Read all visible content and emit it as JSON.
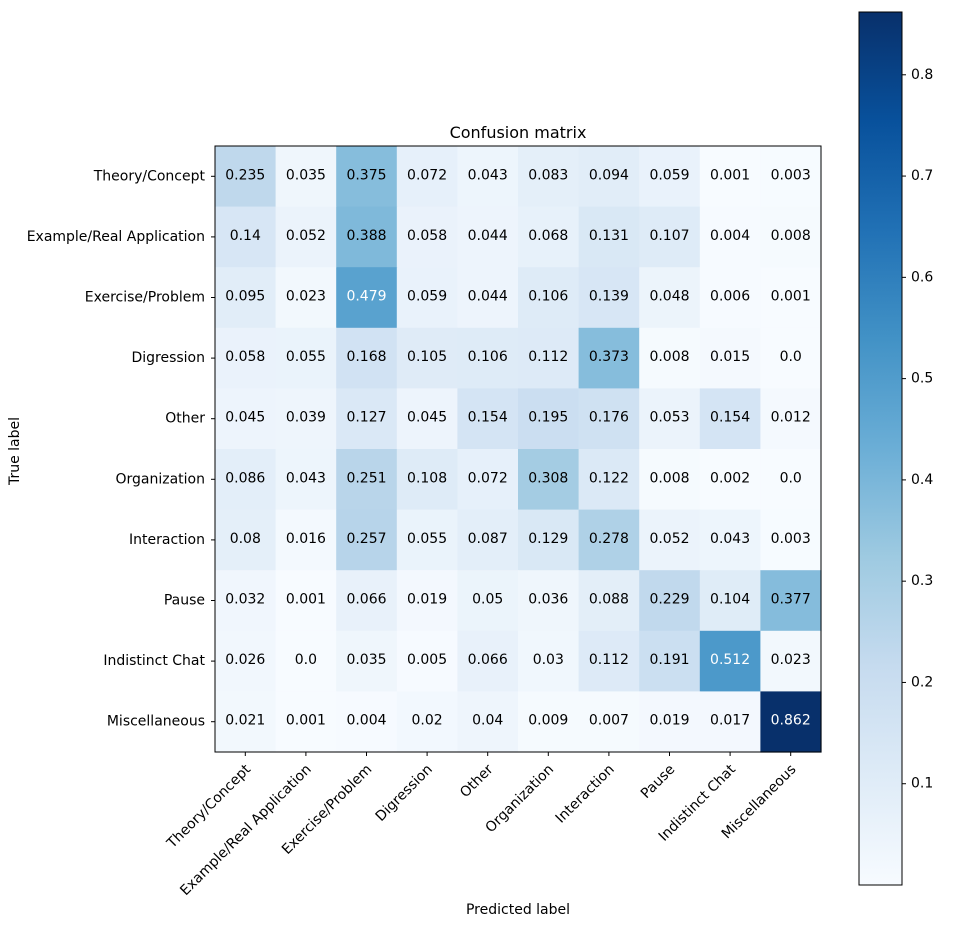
{
  "chart_data": {
    "type": "heatmap",
    "title": "Confusion matrix",
    "xlabel": "Predicted label",
    "ylabel": "True label",
    "labels": [
      "Theory/Concept",
      "Example/Real Application",
      "Exercise/Problem",
      "Digression",
      "Other",
      "Organization",
      "Interaction",
      "Pause",
      "Indistinct Chat",
      "Miscellaneous"
    ],
    "matrix": [
      [
        "0.235",
        "0.035",
        "0.375",
        "0.072",
        "0.043",
        "0.083",
        "0.094",
        "0.059",
        "0.001",
        "0.003"
      ],
      [
        "0.14",
        "0.052",
        "0.388",
        "0.058",
        "0.044",
        "0.068",
        "0.131",
        "0.107",
        "0.004",
        "0.008"
      ],
      [
        "0.095",
        "0.023",
        "0.479",
        "0.059",
        "0.044",
        "0.106",
        "0.139",
        "0.048",
        "0.006",
        "0.001"
      ],
      [
        "0.058",
        "0.055",
        "0.168",
        "0.105",
        "0.106",
        "0.112",
        "0.373",
        "0.008",
        "0.015",
        "0.0"
      ],
      [
        "0.045",
        "0.039",
        "0.127",
        "0.045",
        "0.154",
        "0.195",
        "0.176",
        "0.053",
        "0.154",
        "0.012"
      ],
      [
        "0.086",
        "0.043",
        "0.251",
        "0.108",
        "0.072",
        "0.308",
        "0.122",
        "0.008",
        "0.002",
        "0.0"
      ],
      [
        "0.08",
        "0.016",
        "0.257",
        "0.055",
        "0.087",
        "0.129",
        "0.278",
        "0.052",
        "0.043",
        "0.003"
      ],
      [
        "0.032",
        "0.001",
        "0.066",
        "0.019",
        "0.05",
        "0.036",
        "0.088",
        "0.229",
        "0.104",
        "0.377"
      ],
      [
        "0.026",
        "0.0",
        "0.035",
        "0.005",
        "0.066",
        "0.03",
        "0.112",
        "0.191",
        "0.512",
        "0.023"
      ],
      [
        "0.021",
        "0.001",
        "0.004",
        "0.02",
        "0.04",
        "0.009",
        "0.007",
        "0.019",
        "0.017",
        "0.862"
      ]
    ],
    "colorbar": {
      "min": 0.0,
      "max": 0.862,
      "ticks": [
        "0.1",
        "0.2",
        "0.3",
        "0.4",
        "0.5",
        "0.6",
        "0.7",
        "0.8"
      ]
    },
    "colormap": [
      "#f7fbff",
      "#deebf7",
      "#c6dbef",
      "#9ecae1",
      "#6baed6",
      "#4292c6",
      "#2171b5",
      "#08519c",
      "#08306b"
    ]
  }
}
